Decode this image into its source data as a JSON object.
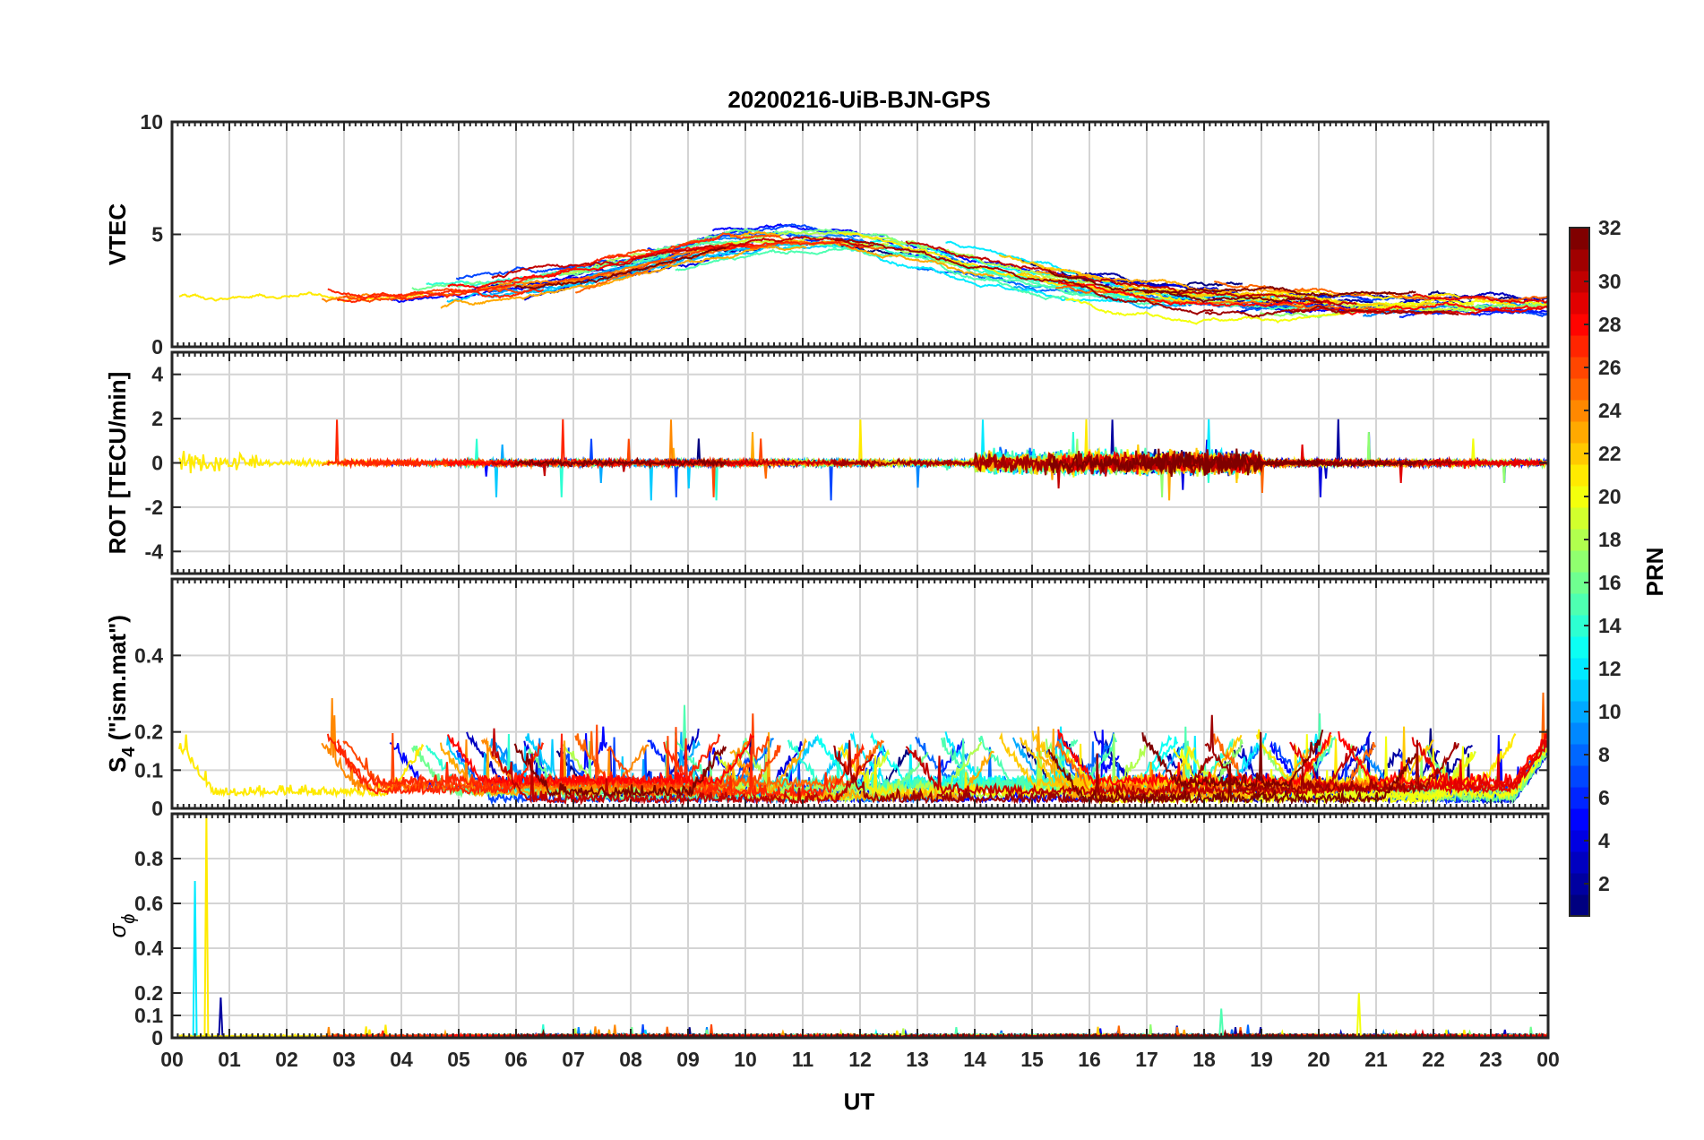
{
  "chart_data": {
    "type": "line",
    "title": "20200216-UiB-BJN-GPS",
    "xlabel": "UT",
    "x_tick_labels": [
      "00",
      "01",
      "02",
      "03",
      "04",
      "05",
      "06",
      "07",
      "08",
      "09",
      "10",
      "11",
      "12",
      "13",
      "14",
      "15",
      "16",
      "17",
      "18",
      "19",
      "20",
      "21",
      "22",
      "23",
      "00"
    ],
    "x_range_hours": [
      0,
      24
    ],
    "grid": true,
    "panels": [
      {
        "id": "vtec",
        "ylabel": "VTEC",
        "ylim": [
          0,
          10
        ],
        "ytick_values": [
          0,
          5,
          10
        ],
        "ytick_labels": [
          "0",
          "5",
          "10"
        ],
        "description_trend": "diurnal, ~2 at night rising to ~5 around 09-13 UT, falling to ~2 after 21 UT"
      },
      {
        "id": "rot",
        "ylabel": "ROT [TECU/min]",
        "ylim": [
          -5,
          5
        ],
        "ytick_values": [
          -4,
          -2,
          0,
          2,
          4
        ],
        "ytick_labels": [
          "-4",
          "-2",
          "0",
          "2",
          "4"
        ]
      },
      {
        "id": "s4",
        "ylabel_main": "S",
        "ylabel_sub": "4",
        "ylabel_suffix": " (\"ism.mat\")",
        "ylim": [
          0,
          0.6
        ],
        "ytick_values": [
          0,
          0.1,
          0.2,
          0.4
        ],
        "ytick_labels": [
          "0",
          "0.1",
          "0.2",
          "0.4"
        ]
      },
      {
        "id": "sigma_phi",
        "ylabel_main": "σ",
        "ylabel_sub": "ϕ",
        "ylim": [
          0,
          1
        ],
        "ytick_values": [
          0,
          0.1,
          0.2,
          0.4,
          0.6,
          0.8
        ],
        "ytick_labels": [
          "0",
          "0.1",
          "0.2",
          "0.4",
          "0.6",
          "0.8"
        ]
      }
    ],
    "colorbar": {
      "label": "PRN",
      "range": [
        1,
        32
      ],
      "colormap": "jet",
      "tick_values": [
        2,
        4,
        6,
        8,
        10,
        12,
        14,
        16,
        18,
        20,
        22,
        24,
        26,
        28,
        30,
        32
      ],
      "tick_labels": [
        "2",
        "4",
        "6",
        "8",
        "10",
        "12",
        "14",
        "16",
        "18",
        "20",
        "22",
        "24",
        "26",
        "28",
        "30",
        "32"
      ]
    },
    "series_count": 32
  }
}
